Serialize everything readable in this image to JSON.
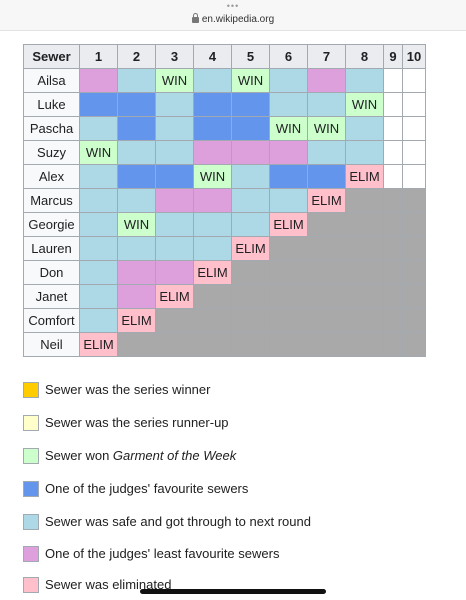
{
  "browser": {
    "dots": "•••",
    "url": "en.wikipedia.org"
  },
  "table": {
    "header": [
      "Sewer",
      "1",
      "2",
      "3",
      "4",
      "5",
      "6",
      "7",
      "8",
      "9",
      "10"
    ],
    "rows": [
      {
        "name": "Ailsa",
        "cells": [
          [
            "least",
            ""
          ],
          [
            "safe",
            ""
          ],
          [
            "win",
            "WIN"
          ],
          [
            "safe",
            ""
          ],
          [
            "win",
            "WIN"
          ],
          [
            "safe",
            ""
          ],
          [
            "least",
            ""
          ],
          [
            "safe",
            ""
          ],
          [
            "blank",
            ""
          ],
          [
            "blank",
            ""
          ]
        ]
      },
      {
        "name": "Luke",
        "cells": [
          [
            "fav",
            ""
          ],
          [
            "fav",
            ""
          ],
          [
            "safe",
            ""
          ],
          [
            "fav",
            ""
          ],
          [
            "fav",
            ""
          ],
          [
            "safe",
            ""
          ],
          [
            "safe",
            ""
          ],
          [
            "win",
            "WIN"
          ],
          [
            "blank",
            ""
          ],
          [
            "blank",
            ""
          ]
        ]
      },
      {
        "name": "Pascha",
        "cells": [
          [
            "safe",
            ""
          ],
          [
            "fav",
            ""
          ],
          [
            "safe",
            ""
          ],
          [
            "fav",
            ""
          ],
          [
            "fav",
            ""
          ],
          [
            "win",
            "WIN"
          ],
          [
            "win",
            "WIN"
          ],
          [
            "safe",
            ""
          ],
          [
            "blank",
            ""
          ],
          [
            "blank",
            ""
          ]
        ]
      },
      {
        "name": "Suzy",
        "cells": [
          [
            "win",
            "WIN"
          ],
          [
            "safe",
            ""
          ],
          [
            "safe",
            ""
          ],
          [
            "least",
            ""
          ],
          [
            "least",
            ""
          ],
          [
            "least",
            ""
          ],
          [
            "safe",
            ""
          ],
          [
            "safe",
            ""
          ],
          [
            "blank",
            ""
          ],
          [
            "blank",
            ""
          ]
        ]
      },
      {
        "name": "Alex",
        "cells": [
          [
            "safe",
            ""
          ],
          [
            "fav",
            ""
          ],
          [
            "fav",
            ""
          ],
          [
            "win",
            "WIN"
          ],
          [
            "safe",
            ""
          ],
          [
            "fav",
            ""
          ],
          [
            "fav",
            ""
          ],
          [
            "elim",
            "ELIM"
          ],
          [
            "blank",
            ""
          ],
          [
            "blank",
            ""
          ]
        ]
      },
      {
        "name": "Marcus",
        "cells": [
          [
            "safe",
            ""
          ],
          [
            "safe",
            ""
          ],
          [
            "least",
            ""
          ],
          [
            "least",
            ""
          ],
          [
            "safe",
            ""
          ],
          [
            "safe",
            ""
          ],
          [
            "elim",
            "ELIM"
          ],
          [
            "na",
            ""
          ],
          [
            "na",
            ""
          ],
          [
            "na",
            ""
          ]
        ]
      },
      {
        "name": "Georgie",
        "cells": [
          [
            "safe",
            ""
          ],
          [
            "win",
            "WIN"
          ],
          [
            "safe",
            ""
          ],
          [
            "safe",
            ""
          ],
          [
            "safe",
            ""
          ],
          [
            "elim",
            "ELIM"
          ],
          [
            "na",
            ""
          ],
          [
            "na",
            ""
          ],
          [
            "na",
            ""
          ],
          [
            "na",
            ""
          ]
        ]
      },
      {
        "name": "Lauren",
        "cells": [
          [
            "safe",
            ""
          ],
          [
            "safe",
            ""
          ],
          [
            "safe",
            ""
          ],
          [
            "safe",
            ""
          ],
          [
            "elim",
            "ELIM"
          ],
          [
            "na",
            ""
          ],
          [
            "na",
            ""
          ],
          [
            "na",
            ""
          ],
          [
            "na",
            ""
          ],
          [
            "na",
            ""
          ]
        ]
      },
      {
        "name": "Don",
        "cells": [
          [
            "safe",
            ""
          ],
          [
            "least",
            ""
          ],
          [
            "least",
            ""
          ],
          [
            "elim",
            "ELIM"
          ],
          [
            "na",
            ""
          ],
          [
            "na",
            ""
          ],
          [
            "na",
            ""
          ],
          [
            "na",
            ""
          ],
          [
            "na",
            ""
          ],
          [
            "na",
            ""
          ]
        ]
      },
      {
        "name": "Janet",
        "cells": [
          [
            "safe",
            ""
          ],
          [
            "least",
            ""
          ],
          [
            "elim",
            "ELIM"
          ],
          [
            "na",
            ""
          ],
          [
            "na",
            ""
          ],
          [
            "na",
            ""
          ],
          [
            "na",
            ""
          ],
          [
            "na",
            ""
          ],
          [
            "na",
            ""
          ],
          [
            "na",
            ""
          ]
        ]
      },
      {
        "name": "Comfort",
        "cells": [
          [
            "safe",
            ""
          ],
          [
            "elim",
            "ELIM"
          ],
          [
            "na",
            ""
          ],
          [
            "na",
            ""
          ],
          [
            "na",
            ""
          ],
          [
            "na",
            ""
          ],
          [
            "na",
            ""
          ],
          [
            "na",
            ""
          ],
          [
            "na",
            ""
          ],
          [
            "na",
            ""
          ]
        ]
      },
      {
        "name": "Neil",
        "cells": [
          [
            "elim",
            "ELIM"
          ],
          [
            "na",
            ""
          ],
          [
            "na",
            ""
          ],
          [
            "na",
            ""
          ],
          [
            "na",
            ""
          ],
          [
            "na",
            ""
          ],
          [
            "na",
            ""
          ],
          [
            "na",
            ""
          ],
          [
            "na",
            ""
          ],
          [
            "na",
            ""
          ]
        ]
      }
    ]
  },
  "legend": [
    {
      "color": "#ffcc00",
      "text": "Sewer was the series winner"
    },
    {
      "color": "#ffffcc",
      "text": "Sewer was the series runner-up"
    },
    {
      "color": "#ccffcc",
      "pre": "Sewer won ",
      "em": "Garment of the Week"
    },
    {
      "color": "#6495ed",
      "text": "One of the judges' favourite sewers"
    },
    {
      "color": "#add8e6",
      "text": "Sewer was safe and got through to next round"
    },
    {
      "color": "#dda0dd",
      "text": "One of the judges' least favourite sewers"
    },
    {
      "color": "#ffc0cb",
      "text": "Sewer was eliminated"
    }
  ]
}
